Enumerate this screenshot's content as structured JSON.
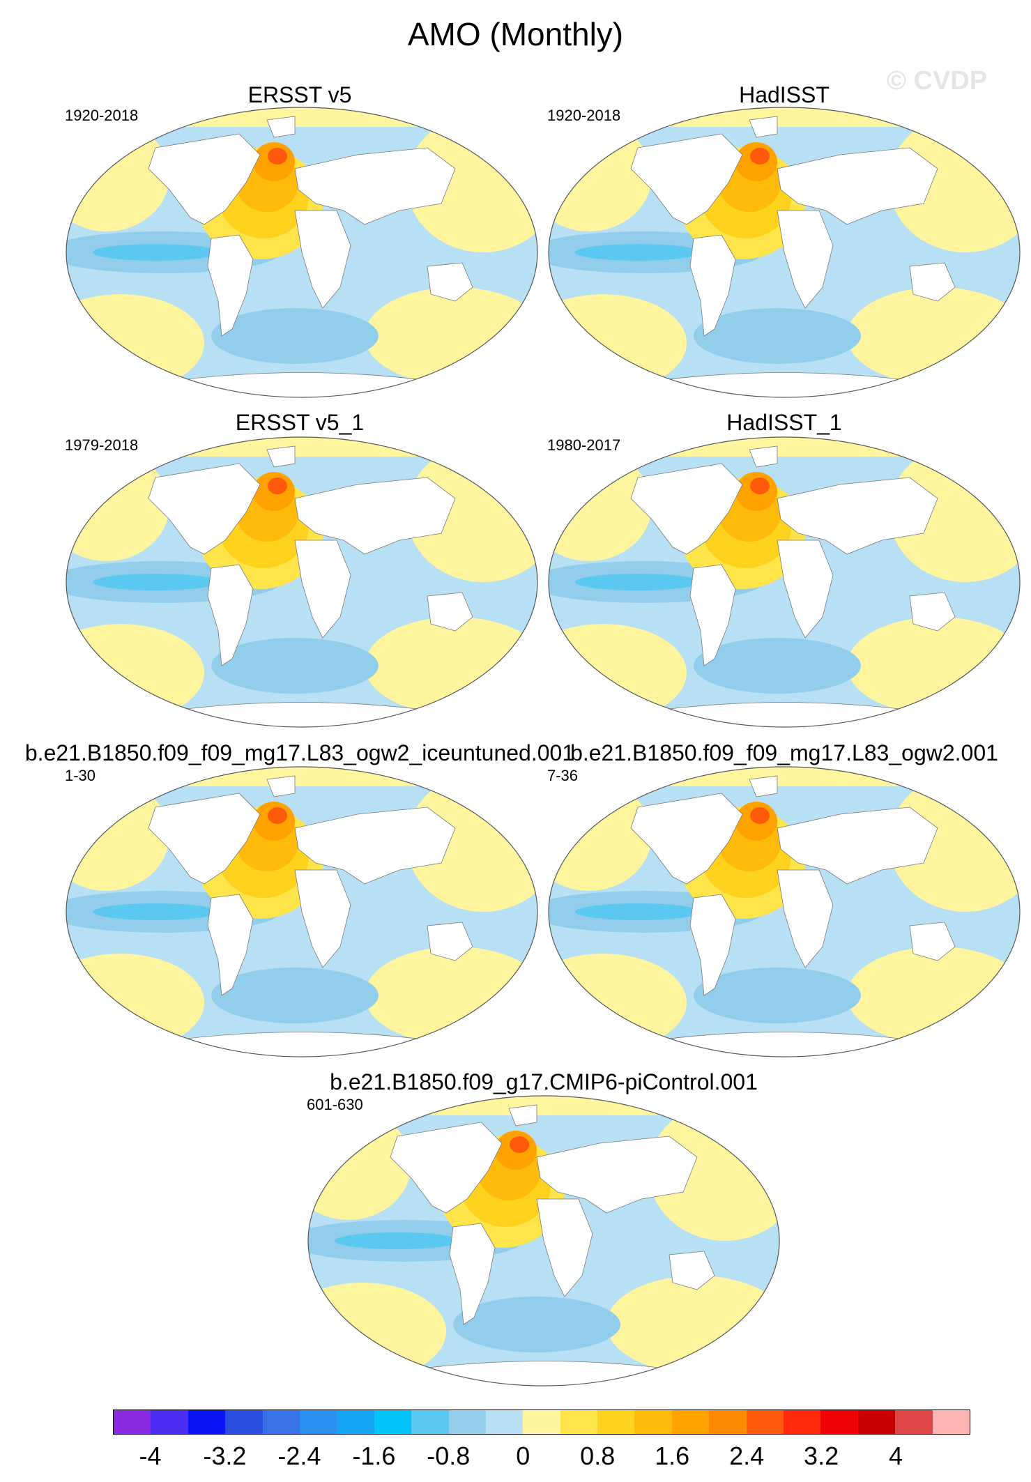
{
  "title": "AMO (Monthly)",
  "watermark": "© CVDP",
  "panels": [
    {
      "title": "ERSST v5",
      "period": "1920-2018"
    },
    {
      "title": "HadISST",
      "period": "1920-2018"
    },
    {
      "title": "ERSST v5_1",
      "period": "1979-2018"
    },
    {
      "title": "HadISST_1",
      "period": "1980-2017"
    },
    {
      "title": "b.e21.B1850.f09_f09_mg17.L83_ogw2_iceuntuned.001",
      "period": "1-30"
    },
    {
      "title": "b.e21.B1850.f09_f09_mg17.L83_ogw2.001",
      "period": "7-36"
    },
    {
      "title": "b.e21.B1850.f09_g17.CMIP6-piControl.001",
      "period": "601-630"
    }
  ],
  "colorbar": {
    "colors": [
      "#8a2be2",
      "#4b2cf0",
      "#0a14f5",
      "#2a4fe0",
      "#3872e6",
      "#2990f2",
      "#16a4f5",
      "#00c3f9",
      "#5ac8f0",
      "#93cdec",
      "#b8e0f4",
      "#fff59e",
      "#ffe44a",
      "#ffd21e",
      "#ffba0a",
      "#ffa200",
      "#ff8a00",
      "#ff5a0a",
      "#ff2a0a",
      "#f00000",
      "#c80000",
      "#e04848",
      "#ffb4b4"
    ],
    "labels": [
      "-4",
      "-3.2",
      "-2.4",
      "-1.6",
      "-0.8",
      "0",
      "0.8",
      "1.6",
      "2.4",
      "3.2",
      "4"
    ]
  }
}
